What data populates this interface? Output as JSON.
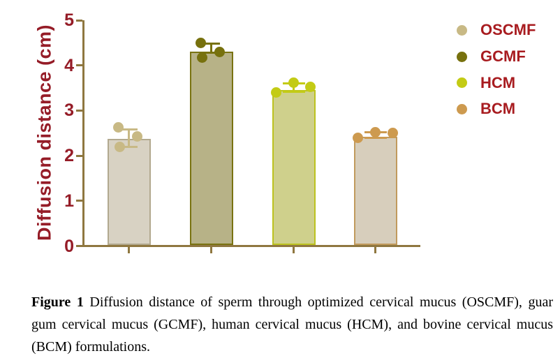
{
  "figure": {
    "caption_label": "Figure 1",
    "caption_text": "Diffusion distance of sperm through optimized cervical mucus (OSCMF), guar gum cervical mucus (GCMF), human cervical mucus (HCM), and bovine cervical mucus (BCM) formulations."
  },
  "colors": {
    "background": "#ffffff",
    "axis_line": "#8f7740",
    "axis_text": "#951c27",
    "legend_text": "#a81c20",
    "caption_text": "#000000"
  },
  "chart_data": {
    "type": "bar",
    "title": "",
    "xlabel": "",
    "ylabel": "Diffusion distance (cm)",
    "ylim": [
      0,
      5
    ],
    "yticks": [
      0,
      1,
      2,
      3,
      4,
      5
    ],
    "grid": false,
    "legend_position": "right",
    "categories": [
      "OSCMF",
      "GCMF",
      "HCM",
      "BCM"
    ],
    "series": [
      {
        "name": "OSCMF",
        "mean": 2.38,
        "err_lo": 2.2,
        "err_hi": 2.58,
        "points": [
          {
            "v": 2.62,
            "dx": -15
          },
          {
            "v": 2.42,
            "dx": 12
          },
          {
            "v": 2.2,
            "dx": -13
          }
        ],
        "fill": "#d8d2c3",
        "border": "#b2a98f",
        "marker": "#c8b985",
        "cap_w": 24
      },
      {
        "name": "GCMF",
        "mean": 4.3,
        "err_lo": 4.28,
        "err_hi": 4.48,
        "points": [
          {
            "v": 4.5,
            "dx": -15
          },
          {
            "v": 4.3,
            "dx": 12
          },
          {
            "v": 4.17,
            "dx": -13
          }
        ],
        "fill": "#b7b287",
        "border": "#797312",
        "marker": "#77710e",
        "cap_w": 24
      },
      {
        "name": "HCM",
        "mean": 3.45,
        "err_lo": 3.42,
        "err_hi": 3.6,
        "points": [
          {
            "v": 3.4,
            "dx": -25
          },
          {
            "v": 3.62,
            "dx": 0
          },
          {
            "v": 3.52,
            "dx": 24
          }
        ],
        "fill": "#cfd08c",
        "border": "#bcc21f",
        "marker": "#c3cb15",
        "cap_w": 32
      },
      {
        "name": "BCM",
        "mean": 2.42,
        "err_lo": 2.39,
        "err_hi": 2.52,
        "points": [
          {
            "v": 2.4,
            "dx": -25
          },
          {
            "v": 2.52,
            "dx": 0
          },
          {
            "v": 2.5,
            "dx": 25
          }
        ],
        "fill": "#d7cebc",
        "border": "#c19a5d",
        "marker": "#cd9a4f",
        "cap_w": 32
      }
    ]
  }
}
